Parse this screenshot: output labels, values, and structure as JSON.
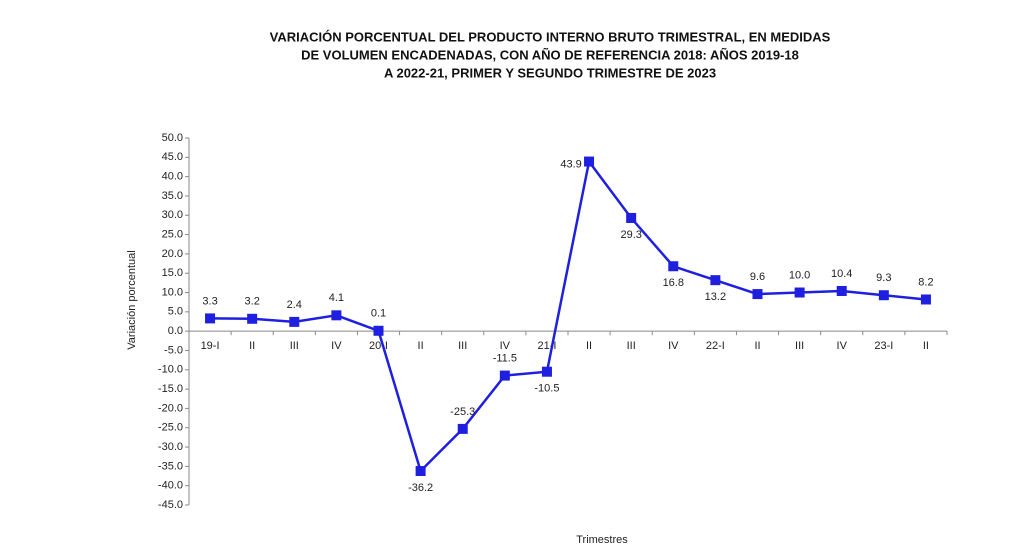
{
  "chart_data": {
    "type": "line",
    "title": [
      "VARIACIÓN PORCENTUAL DEL PRODUCTO INTERNO BRUTO TRIMESTRAL, EN  MEDIDAS",
      "DE  VOLUMEN ENCADENADAS, CON AÑO DE  REFERENCIA 2018: AÑOS 2019-18",
      "A 2022-21, PRIMER Y SEGUNDO TRIMESTRE DE 2023"
    ],
    "y_label": "Variación porcentual",
    "x_label": "Trimestres",
    "categories": [
      "19-I",
      "II",
      "III",
      "IV",
      "20-I",
      "II",
      "III",
      "IV",
      "21-I",
      "II",
      "III",
      "IV",
      "22-I",
      "II",
      "III",
      "IV",
      "23-I",
      "II"
    ],
    "values": [
      3.3,
      3.2,
      2.4,
      4.1,
      0.1,
      -36.2,
      -25.3,
      -11.5,
      -10.5,
      43.9,
      29.3,
      16.8,
      13.2,
      9.6,
      10.0,
      10.4,
      9.3,
      8.2
    ],
    "value_labels": [
      "3.3",
      "3.2",
      "2.4",
      "4.1",
      "0.1",
      "-36.2",
      "-25.3",
      "-11.5",
      "-10.5",
      "43.9",
      "29.3",
      "16.8",
      "13.2",
      "9.6",
      "10.0",
      "10.4",
      "9.3",
      "8.2"
    ],
    "color": "#1f1fe0",
    "ylim": [
      -45,
      50
    ],
    "yticks": [
      {
        "value": 50,
        "label": "50.0"
      },
      {
        "value": 45,
        "label": "45.0"
      },
      {
        "value": 40,
        "label": "40.0"
      },
      {
        "value": 35,
        "label": "35.0"
      },
      {
        "value": 30,
        "label": "30.0"
      },
      {
        "value": 25,
        "label": "25.0"
      },
      {
        "value": 20,
        "label": "20.0"
      },
      {
        "value": 15,
        "label": "15.0"
      },
      {
        "value": 10,
        "label": "10.0"
      },
      {
        "value": 5,
        "label": "5.0"
      },
      {
        "value": 0,
        "label": "0.0"
      },
      {
        "value": -5,
        "label": "-5.0"
      },
      {
        "value": -10,
        "label": "-10.0"
      },
      {
        "value": -15,
        "label": "-15.0"
      },
      {
        "value": -20,
        "label": "-20.0"
      },
      {
        "value": -25,
        "label": "-25.0"
      },
      {
        "value": -30,
        "label": "-30.0"
      },
      {
        "value": -35,
        "label": "-35.0"
      },
      {
        "value": -40,
        "label": "-40.0"
      },
      {
        "value": -45,
        "label": "-45.0"
      }
    ]
  }
}
